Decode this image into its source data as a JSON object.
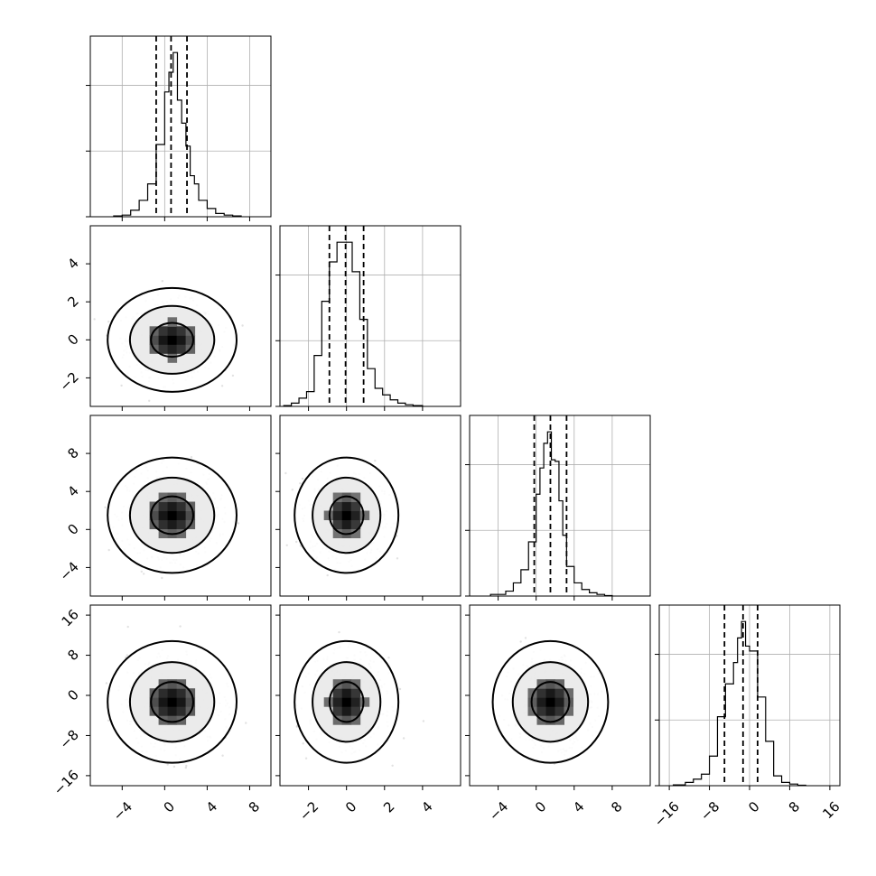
{
  "chart_data": {
    "type": "corner",
    "grid": true,
    "parameters": [
      {
        "range": [
          -7,
          10
        ],
        "ticks": [
          -4,
          0,
          4,
          8
        ],
        "tick_labels": [
          "−4",
          "0",
          "4",
          "8"
        ],
        "mean": 0.7,
        "sd": 2.0,
        "quantiles": [
          -0.8,
          0.6,
          2.1
        ],
        "hist_edges": [
          -4.8,
          -4.0,
          -3.2,
          -2.4,
          -1.6,
          -0.8,
          0.0,
          0.4,
          0.8,
          1.2,
          1.6,
          2.0,
          2.4,
          2.8,
          3.2,
          4.0,
          4.8,
          5.6,
          6.4,
          7.2
        ],
        "hist_counts": [
          0.005,
          0.01,
          0.04,
          0.1,
          0.2,
          0.44,
          0.76,
          0.88,
          1.0,
          0.71,
          0.57,
          0.43,
          0.25,
          0.2,
          0.1,
          0.05,
          0.02,
          0.01,
          0.005
        ]
      },
      {
        "range": [
          -3.5,
          6
        ],
        "ticks": [
          -2,
          0,
          2,
          4
        ],
        "tick_labels": [
          "−2",
          "0",
          "2",
          "4"
        ],
        "mean": 0.0,
        "sd": 0.9,
        "quantiles": [
          -0.9,
          -0.05,
          0.9
        ],
        "hist_edges": [
          -3.3,
          -2.9,
          -2.5,
          -2.1,
          -1.7,
          -1.3,
          -0.9,
          -0.5,
          -0.1,
          0.3,
          0.7,
          1.1,
          1.5,
          1.9,
          2.3,
          2.7,
          3.1,
          3.5,
          4.0
        ],
        "hist_counts": [
          0.005,
          0.02,
          0.05,
          0.09,
          0.31,
          0.64,
          0.88,
          1.0,
          1.0,
          0.82,
          0.53,
          0.23,
          0.11,
          0.07,
          0.04,
          0.02,
          0.01,
          0.005
        ]
      },
      {
        "range": [
          -7,
          12
        ],
        "ticks": [
          -4,
          0,
          4,
          8
        ],
        "tick_labels": [
          "−4",
          "0",
          "4",
          "8"
        ],
        "mean": 1.5,
        "sd": 2.0,
        "quantiles": [
          -0.2,
          1.5,
          3.2
        ],
        "hist_edges": [
          -4.8,
          -3.2,
          -2.4,
          -1.6,
          -0.8,
          0.0,
          0.4,
          0.8,
          1.2,
          1.6,
          2.0,
          2.4,
          2.8,
          3.2,
          4.0,
          4.8,
          5.6,
          6.4,
          7.2,
          8.0
        ],
        "hist_counts": [
          0.01,
          0.03,
          0.08,
          0.16,
          0.33,
          0.62,
          0.78,
          0.93,
          1.0,
          0.83,
          0.82,
          0.58,
          0.37,
          0.18,
          0.08,
          0.04,
          0.02,
          0.01,
          0.003
        ]
      },
      {
        "range": [
          -18,
          18
        ],
        "ticks": [
          -16,
          -8,
          0,
          8,
          16
        ],
        "tick_labels": [
          "−16",
          "−8",
          "0",
          "8",
          "16"
        ],
        "mean": -1.3,
        "sd": 4.0,
        "quantiles": [
          -5.0,
          -1.3,
          1.6
        ],
        "hist_edges": [
          -15.2,
          -12.8,
          -11.2,
          -9.6,
          -8.0,
          -6.4,
          -4.8,
          -3.2,
          -2.4,
          -1.6,
          -0.8,
          0.0,
          0.8,
          1.6,
          3.2,
          4.8,
          6.4,
          8.0,
          9.6,
          11.2
        ],
        "hist_counts": [
          0.005,
          0.02,
          0.04,
          0.07,
          0.18,
          0.42,
          0.62,
          0.75,
          0.9,
          1.0,
          0.85,
          0.82,
          0.82,
          0.54,
          0.27,
          0.06,
          0.02,
          0.01,
          0.003
        ]
      }
    ],
    "contour_levels": [
      0.39,
      0.86,
      0.99
    ],
    "scatter": {
      "alpha": 0.25,
      "points": 700
    }
  }
}
